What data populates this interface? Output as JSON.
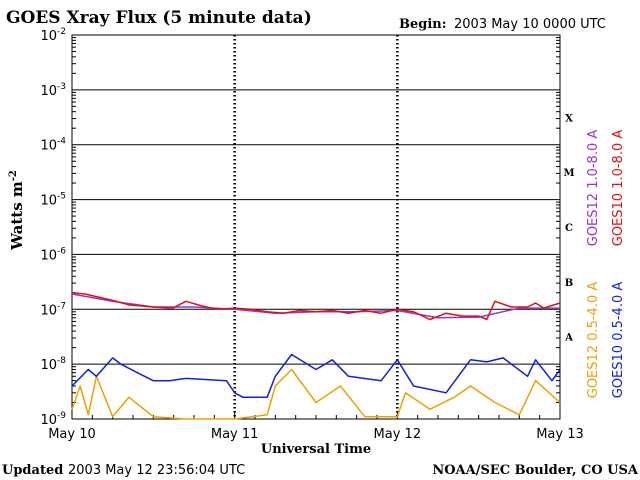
{
  "chart_data": {
    "type": "line",
    "title": "GOES Xray Flux (5 minute data)",
    "begin_label": "Begin:",
    "begin_value": "2003 May 10 0000 UTC",
    "ylabel": "Watts m",
    "ylabel_sup": "-2",
    "xlabel": "Universal Time",
    "y_scale": "log",
    "ylim": [
      1e-09,
      0.01
    ],
    "y_ticks": [
      {
        "base": "10",
        "exp": "-2",
        "value": 0.01
      },
      {
        "base": "10",
        "exp": "-3",
        "value": 0.001
      },
      {
        "base": "10",
        "exp": "-4",
        "value": 0.0001
      },
      {
        "base": "10",
        "exp": "-5",
        "value": 1e-05
      },
      {
        "base": "10",
        "exp": "-6",
        "value": 1e-06
      },
      {
        "base": "10",
        "exp": "-7",
        "value": 1e-07
      },
      {
        "base": "10",
        "exp": "-8",
        "value": 1e-08
      },
      {
        "base": "10",
        "exp": "-9",
        "value": 1e-09
      }
    ],
    "x_ticks": [
      {
        "label": "May 10",
        "day": 0
      },
      {
        "label": "May 11",
        "day": 1
      },
      {
        "label": "May 12",
        "day": 2
      },
      {
        "label": "May 13",
        "day": 3
      }
    ],
    "xlim_days": [
      0,
      3
    ],
    "flare_classes": [
      {
        "label": "X",
        "low": 0.0001,
        "high": 0.001
      },
      {
        "label": "M",
        "low": 1e-05,
        "high": 0.0001
      },
      {
        "label": "C",
        "low": 1e-06,
        "high": 1e-05
      },
      {
        "label": "B",
        "low": 1e-07,
        "high": 1e-06
      },
      {
        "label": "A",
        "low": 1e-08,
        "high": 1e-07
      }
    ],
    "legend_right": [
      {
        "text": "GOES12 1.0-8.0 A",
        "color": "#9933cc"
      },
      {
        "text": "GOES10 1.0-8.0 A",
        "color": "#e01010"
      },
      {
        "text": "GOES12 0.5-4.0 A",
        "color": "#f0a000"
      },
      {
        "text": "GOES10 0.5-4.0 A",
        "color": "#1020e0"
      }
    ],
    "series": [
      {
        "name": "GOES10 1.0-8.0 A",
        "color": "#e01010",
        "x_days": [
          0,
          0.08,
          0.15,
          0.25,
          0.35,
          0.5,
          0.62,
          0.7,
          0.8,
          0.9,
          1.0,
          1.1,
          1.2,
          1.3,
          1.4,
          1.5,
          1.6,
          1.7,
          1.8,
          1.9,
          2.0,
          2.1,
          2.2,
          2.3,
          2.4,
          2.5,
          2.55,
          2.6,
          2.7,
          2.8,
          2.85,
          2.9,
          3.0
        ],
        "y": [
          2e-07,
          1.9e-07,
          1.7e-07,
          1.45e-07,
          1.2e-07,
          1.1e-07,
          1.05e-07,
          1.4e-07,
          1.15e-07,
          1e-07,
          1.05e-07,
          1e-07,
          9e-08,
          8.5e-08,
          9.5e-08,
          9e-08,
          9.5e-08,
          8.5e-08,
          9.5e-08,
          8.5e-08,
          1e-07,
          9e-08,
          6.5e-08,
          8.5e-08,
          7.5e-08,
          7.5e-08,
          6.5e-08,
          1.4e-07,
          1.1e-07,
          1.1e-07,
          1.3e-07,
          1.05e-07,
          1.3e-07
        ]
      },
      {
        "name": "GOES12 1.0-8.0 A",
        "color": "#9933cc",
        "x_days": [
          0,
          0.25,
          0.5,
          0.75,
          1.0,
          1.25,
          1.5,
          1.75,
          2.0,
          2.25,
          2.5,
          2.75,
          3.0
        ],
        "y": [
          1.9e-07,
          1.4e-07,
          1.1e-07,
          1.1e-07,
          1e-07,
          8.5e-08,
          9e-08,
          9e-08,
          9.5e-08,
          7e-08,
          7.2e-08,
          1.05e-07,
          1.05e-07
        ]
      },
      {
        "name": "GOES10 0.5-4.0 A",
        "color": "#1020e0",
        "x_days": [
          0,
          0.1,
          0.15,
          0.25,
          0.3,
          0.4,
          0.5,
          0.6,
          0.7,
          0.95,
          1.0,
          1.05,
          1.2,
          1.25,
          1.35,
          1.5,
          1.6,
          1.7,
          1.9,
          2.0,
          2.1,
          2.3,
          2.45,
          2.55,
          2.65,
          2.8,
          2.85,
          2.95,
          3.0
        ],
        "y": [
          4e-09,
          8e-09,
          6e-09,
          1.3e-08,
          1e-08,
          7e-09,
          5e-09,
          5e-09,
          5.5e-09,
          5e-09,
          3e-09,
          2.5e-09,
          2.5e-09,
          6e-09,
          1.5e-08,
          8e-09,
          1.2e-08,
          6e-09,
          5e-09,
          1.2e-08,
          4e-09,
          3e-09,
          1.2e-08,
          1.1e-08,
          1.3e-08,
          6e-09,
          1.2e-08,
          5e-09,
          8e-09
        ]
      },
      {
        "name": "GOES12 0.5-4.0 A",
        "color": "#f0a000",
        "x_days": [
          0,
          0.05,
          0.1,
          0.15,
          0.25,
          0.35,
          0.5,
          0.7,
          1.0,
          1.2,
          1.25,
          1.35,
          1.5,
          1.65,
          1.8,
          2.0,
          2.05,
          2.2,
          2.35,
          2.45,
          2.6,
          2.75,
          2.85,
          3.0
        ],
        "y": [
          1.5e-09,
          4e-09,
          1.2e-09,
          6e-09,
          1.1e-09,
          2.5e-09,
          1.1e-09,
          1e-09,
          1e-09,
          1.2e-09,
          4e-09,
          8e-09,
          2e-09,
          4e-09,
          1.1e-09,
          1.1e-09,
          3e-09,
          1.5e-09,
          2.5e-09,
          4e-09,
          2e-09,
          1.2e-09,
          5e-09,
          2e-09
        ]
      }
    ],
    "grid": true
  },
  "footer": {
    "updated_label": "Updated",
    "updated_value": "2003 May 12 23:56:04 UTC",
    "credit": "NOAA/SEC Boulder, CO USA"
  }
}
